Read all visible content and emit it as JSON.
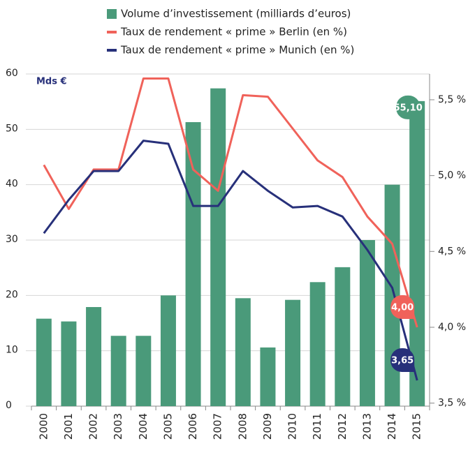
{
  "chart_data": {
    "type": "bar",
    "y_label": "Mds €",
    "categories": [
      "2000",
      "2001",
      "2002",
      "2003",
      "2004",
      "2005",
      "2006",
      "2007",
      "2008",
      "2009",
      "2010",
      "2011",
      "2012",
      "2013",
      "2014",
      "2015"
    ],
    "series": [
      {
        "name": "Volume d’investissement (milliards d’euros)",
        "type": "bar",
        "axis": "y",
        "color": "#4a9a7a",
        "values": [
          15.8,
          15.3,
          17.9,
          12.7,
          12.7,
          20.0,
          51.3,
          57.4,
          19.5,
          10.6,
          19.2,
          22.4,
          25.1,
          30.0,
          40.0,
          55.1
        ],
        "value_labels": [
          null,
          null,
          null,
          null,
          null,
          null,
          null,
          null,
          null,
          null,
          null,
          null,
          null,
          null,
          null,
          "55,10"
        ]
      },
      {
        "name": "Taux de rendement « prime » Berlin (en %)",
        "type": "line",
        "axis": "y2",
        "color": "#f0625a",
        "values": [
          5.07,
          4.78,
          5.04,
          5.04,
          5.64,
          5.64,
          5.04,
          4.9,
          5.53,
          5.52,
          5.31,
          5.1,
          4.99,
          4.73,
          4.55,
          4.0
        ],
        "value_labels": [
          null,
          null,
          null,
          null,
          null,
          null,
          null,
          null,
          null,
          null,
          null,
          null,
          null,
          null,
          null,
          "4,00"
        ]
      },
      {
        "name": "Taux de rendement « prime » Munich (en %)",
        "type": "line",
        "axis": "y2",
        "color": "#27307a",
        "values": [
          4.62,
          4.84,
          5.03,
          5.03,
          5.23,
          5.21,
          4.8,
          4.8,
          5.03,
          4.9,
          4.79,
          4.8,
          4.73,
          4.51,
          4.26,
          3.65
        ],
        "value_labels": [
          null,
          null,
          null,
          null,
          null,
          null,
          null,
          null,
          null,
          null,
          null,
          null,
          null,
          null,
          null,
          "3,65"
        ]
      }
    ],
    "ylim": [
      0,
      60
    ],
    "yticks": [
      0,
      10,
      20,
      30,
      40,
      50,
      60
    ],
    "y2lim": [
      3.48,
      5.67
    ],
    "y2ticks": [
      {
        "value": 3.5,
        "label": "3,5 %"
      },
      {
        "value": 4.0,
        "label": "4,0 %"
      },
      {
        "value": 4.5,
        "label": "4,5 %"
      },
      {
        "value": 5.0,
        "label": "5,0 %"
      },
      {
        "value": 5.5,
        "label": "5,5 %"
      }
    ],
    "grid": true
  }
}
